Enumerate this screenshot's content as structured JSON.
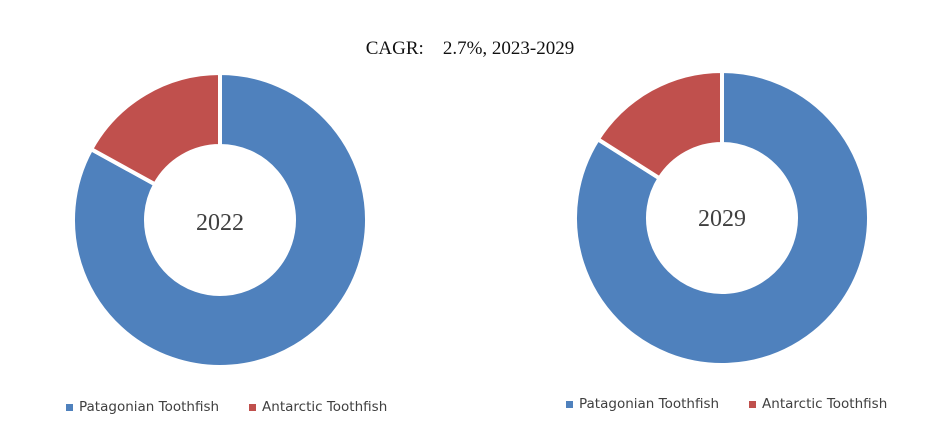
{
  "title": "CAGR:    2.7%, 2023-2029",
  "colors": {
    "patagonian": "#4F81BD",
    "antarctic": "#C0504D"
  },
  "chart_data": [
    {
      "type": "pie",
      "center_label": "2022",
      "categories": [
        "Patagonian Toothfish",
        "Antarctic Toothfish"
      ],
      "values": [
        83,
        17
      ],
      "legend_position": "bottom"
    },
    {
      "type": "pie",
      "center_label": "2029",
      "categories": [
        "Patagonian Toothfish",
        "Antarctic Toothfish"
      ],
      "values": [
        84,
        16
      ],
      "legend_position": "bottom"
    }
  ]
}
